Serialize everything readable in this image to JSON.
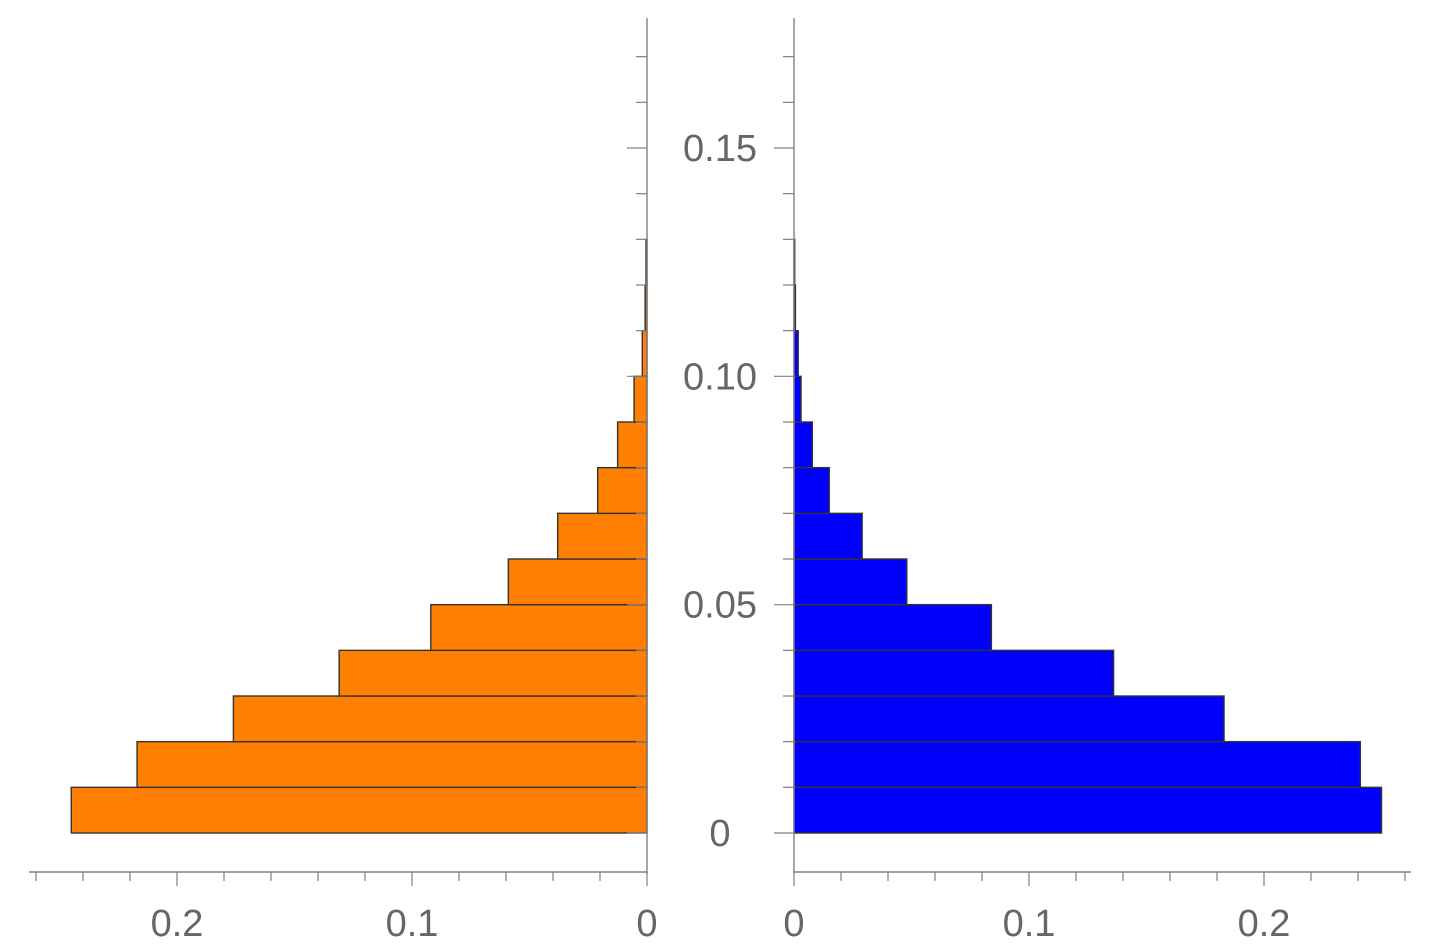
{
  "chart_data": [
    {
      "type": "bar",
      "orientation": "horizontal",
      "direction": "left",
      "color": "#ff8000",
      "bin_edges": [
        0,
        0.01,
        0.02,
        0.03,
        0.04,
        0.05,
        0.06,
        0.07,
        0.08,
        0.09,
        0.1,
        0.11,
        0.12,
        0.13
      ],
      "values": [
        0.245,
        0.217,
        0.176,
        0.131,
        0.092,
        0.059,
        0.038,
        0.021,
        0.0125,
        0.0055,
        0.002,
        0.0008,
        0.0004
      ],
      "xlim": [
        0,
        0.262
      ],
      "ylim": [
        -0.009,
        0.178
      ],
      "xticks": [
        {
          "value": 0.2,
          "label": "0.2"
        },
        {
          "value": 0.1,
          "label": "0.1"
        },
        {
          "value": 0,
          "label": "0"
        }
      ],
      "yticks": [
        {
          "value": 0,
          "label": "0"
        },
        {
          "value": 0.05,
          "label": "0.05"
        },
        {
          "value": 0.1,
          "label": "0.10"
        },
        {
          "value": 0.15,
          "label": "0.15"
        }
      ],
      "grid": false
    },
    {
      "type": "bar",
      "orientation": "horizontal",
      "direction": "right",
      "color": "#0000ff",
      "bin_edges": [
        0,
        0.01,
        0.02,
        0.03,
        0.04,
        0.05,
        0.06,
        0.07,
        0.08,
        0.09,
        0.1,
        0.11,
        0.12,
        0.13
      ],
      "values": [
        0.25,
        0.241,
        0.183,
        0.136,
        0.084,
        0.048,
        0.029,
        0.015,
        0.0078,
        0.003,
        0.0018,
        0.0006,
        0.0003
      ],
      "xlim": [
        0,
        0.262
      ],
      "ylim": [
        -0.009,
        0.178
      ],
      "xticks": [
        {
          "value": 0,
          "label": "0"
        },
        {
          "value": 0.1,
          "label": "0.1"
        },
        {
          "value": 0.2,
          "label": "0.2"
        }
      ],
      "grid": false
    }
  ]
}
